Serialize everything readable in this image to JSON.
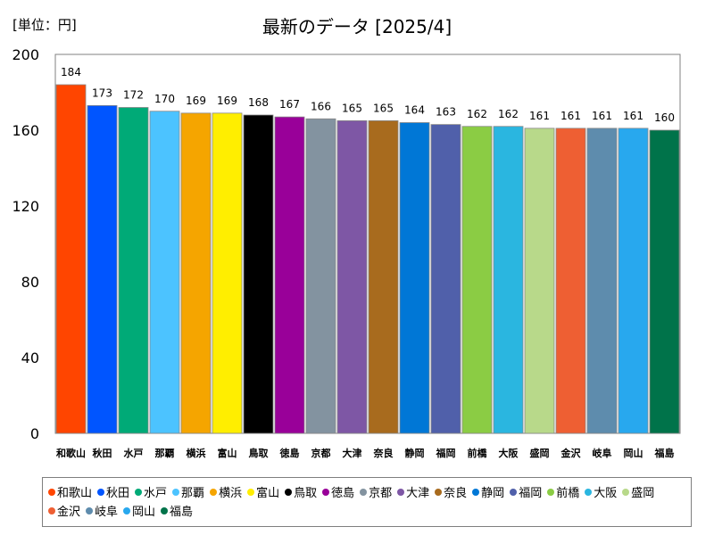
{
  "unit_label": "[単位：円]",
  "chart_data": {
    "type": "bar",
    "title": "最新のデータ [2025/4]",
    "xlabel": "",
    "ylabel": "",
    "ylim": [
      0,
      200
    ],
    "yticks": [
      0,
      40,
      80,
      120,
      160,
      200
    ],
    "grid": false,
    "legend_position": "bottom",
    "categories": [
      "和歌山",
      "秋田",
      "水戸",
      "那覇",
      "横浜",
      "富山",
      "鳥取",
      "徳島",
      "京都",
      "大津",
      "奈良",
      "静岡",
      "福岡",
      "前橋",
      "大阪",
      "盛岡",
      "金沢",
      "岐阜",
      "岡山",
      "福島"
    ],
    "values": [
      184,
      173,
      172,
      170,
      169,
      169,
      168,
      167,
      166,
      165,
      165,
      164,
      163,
      162,
      162,
      161,
      161,
      161,
      161,
      160
    ],
    "colors": [
      "#ff4500",
      "#0055ff",
      "#00aa77",
      "#4cc3ff",
      "#f5a500",
      "#ffee00",
      "#000000",
      "#990099",
      "#8393a0",
      "#7e57a5",
      "#a86b1e",
      "#0077d6",
      "#5060aa",
      "#8bcc44",
      "#2ab6e0",
      "#b8d98a",
      "#ee5f33",
      "#5e8cad",
      "#28a8ee",
      "#00734a"
    ]
  }
}
